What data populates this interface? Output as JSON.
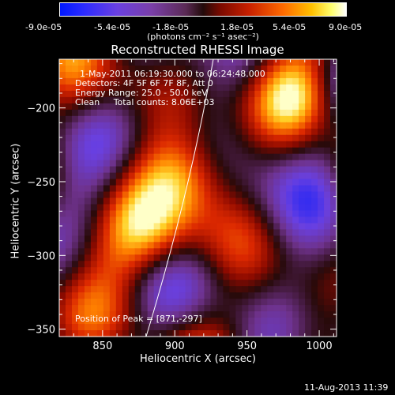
{
  "colorbar": {
    "tick_labels": [
      "-9.0e-05",
      "-5.4e-05",
      "-1.8e-05",
      "1.8e-05",
      "5.4e-05",
      "9.0e-05"
    ],
    "units": "(photons cm⁻² s⁻¹ asec⁻²)"
  },
  "chart_data": {
    "type": "heatmap",
    "title": "Reconstructed RHESSI Image",
    "xlabel": "Heliocentric X (arcsec)",
    "ylabel": "Heliocentric Y (arcsec)",
    "xlim": [
      820,
      1012
    ],
    "ylim": [
      -355,
      -167
    ],
    "xticks": [
      850,
      900,
      950,
      1000
    ],
    "yticks": [
      -200,
      -250,
      -300,
      -350
    ],
    "zlim": [
      -9e-05,
      9e-05
    ],
    "annotations": {
      "time": "1-May-2011 06:19:30.000 to 06:24:48.000",
      "detectors": "Detectors: 4F 5F 6F 7F 8F, Att 0",
      "energy": "Energy Range: 25.0 - 50.0 keV",
      "clean": "Clean     Total counts: 8.06E+03",
      "peak": "Position of Peak = [871,-297]"
    },
    "peak": [
      871,
      -297
    ]
  },
  "footer": {
    "timestamp": "11-Aug-2013 11:39"
  }
}
